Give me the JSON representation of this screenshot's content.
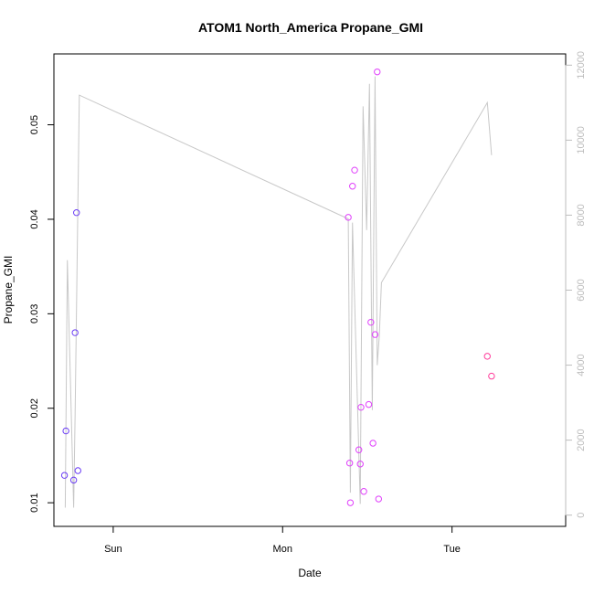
{
  "chart_data": {
    "type": "scatter",
    "title": "ATOM1 North_America Propane_GMI",
    "xlabel": "Date",
    "ylabel": "Propane_GMI",
    "x_ticks": [
      {
        "label": "Sun",
        "value": 24
      },
      {
        "label": "Mon",
        "value": 48
      },
      {
        "label": "Tue",
        "value": 72
      }
    ],
    "xlim": [
      15.6,
      88.1
    ],
    "ylim": [
      0.0075,
      0.0575
    ],
    "y_ticks": [
      0.01,
      0.02,
      0.03,
      0.04,
      0.05
    ],
    "y_right": {
      "ylim": [
        -300,
        12300
      ],
      "ticks": [
        0,
        2000,
        4000,
        6000,
        8000,
        10000,
        12000
      ],
      "color": "#bdbdbd"
    },
    "grid": false,
    "series": [
      {
        "marker": "circle",
        "x": [
          17.1,
          17.3,
          18.4,
          18.6,
          18.8,
          19.0
        ],
        "y": [
          0.0129,
          0.0176,
          0.0124,
          0.028,
          0.0407,
          0.0134
        ],
        "colors": [
          "#6a3cf5",
          "#6a3cf5",
          "#6a3cf5",
          "#6a3cf5",
          "#6a3cf5",
          "#6a3cf5"
        ]
      },
      {
        "marker": "circle",
        "x": [
          57.3,
          57.5,
          57.6,
          57.9,
          58.2,
          58.8,
          59.0,
          59.1,
          59.5,
          60.2,
          60.5,
          60.8,
          61.1,
          61.4,
          61.6,
          77.0,
          77.6
        ],
        "y": [
          0.0402,
          0.0142,
          0.01,
          0.0435,
          0.0452,
          0.0156,
          0.0141,
          0.0201,
          0.0112,
          0.0204,
          0.0291,
          0.0163,
          0.0278,
          0.0556,
          0.0104,
          0.0255,
          0.0234
        ],
        "colors": [
          "#e040fb",
          "#e040fb",
          "#e040fb",
          "#e040fb",
          "#e040fb",
          "#e040fb",
          "#e040fb",
          "#e040fb",
          "#e040fb",
          "#e040fb",
          "#e040fb",
          "#e040fb",
          "#e040fb",
          "#e040fb",
          "#e040fb",
          "#ff3c9b",
          "#ff3c9b"
        ]
      }
    ],
    "secondary_line": {
      "color": "#c8c8c8",
      "x": [
        17.2,
        17.5,
        18.4,
        18.6,
        19.2,
        57.3,
        57.6,
        57.9,
        59.0,
        59.4,
        59.9,
        60.3,
        60.7,
        61.1,
        61.4,
        61.7,
        62.0,
        77.0,
        77.6
      ],
      "y": [
        200,
        6800,
        200,
        2700,
        11200,
        7900,
        600,
        7800,
        300,
        10900,
        7600,
        11500,
        2800,
        11700,
        4000,
        4800,
        6200,
        11000,
        9600
      ]
    }
  }
}
